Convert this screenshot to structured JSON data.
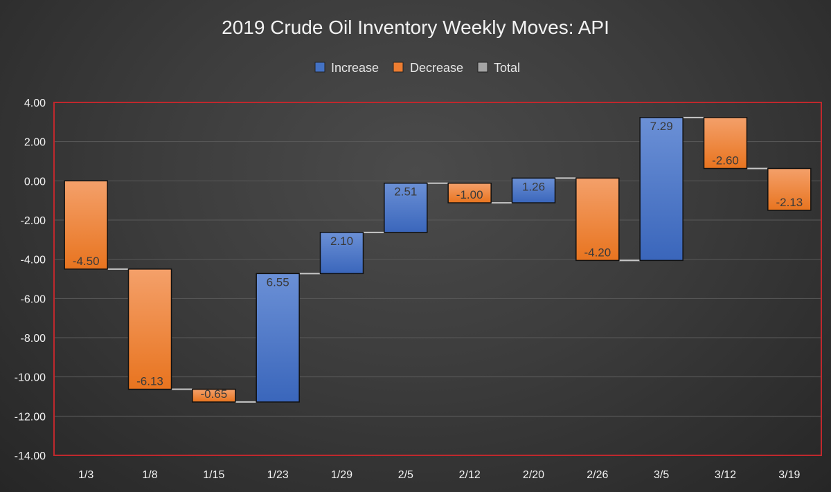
{
  "chart_data": {
    "type": "bar",
    "subtype": "waterfall",
    "title": "2019 Crude Oil Inventory Weekly Moves: API",
    "xlabel": "",
    "ylabel": "",
    "ylim": [
      -14,
      4
    ],
    "yticks": [
      4,
      2,
      0,
      -2,
      -4,
      -6,
      -8,
      -10,
      -12,
      -14
    ],
    "ytick_labels": [
      "4.00",
      "2.00",
      "0.00",
      "-2.00",
      "-4.00",
      "-6.00",
      "-8.00",
      "-10.00",
      "-12.00",
      "-14.00"
    ],
    "grid": true,
    "legend_position": "top-center",
    "legend": [
      {
        "name": "Increase",
        "color": "#4472c4"
      },
      {
        "name": "Decrease",
        "color": "#ed7d31"
      },
      {
        "name": "Total",
        "color": "#a5a5a5"
      }
    ],
    "categories": [
      "1/3",
      "1/8",
      "1/15",
      "1/23",
      "1/29",
      "2/5",
      "2/12",
      "2/20",
      "2/26",
      "3/5",
      "3/12",
      "3/19"
    ],
    "values": [
      -4.5,
      -6.13,
      -0.65,
      6.55,
      2.1,
      2.51,
      -1.0,
      1.26,
      -4.2,
      7.29,
      -2.6,
      -2.13
    ],
    "value_labels": [
      "-4.50",
      "-6.13",
      "-0.65",
      "6.55",
      "2.10",
      "2.51",
      "-1.00",
      "1.26",
      "-4.20",
      "7.29",
      "-2.60",
      "-2.13"
    ],
    "colors": {
      "increase": "#4472c4",
      "decrease": "#ed7d31",
      "total": "#a5a5a5",
      "plot_border": "#c0282d",
      "connector": "#c8c8c8",
      "gridline": "#5a5a5a"
    }
  }
}
